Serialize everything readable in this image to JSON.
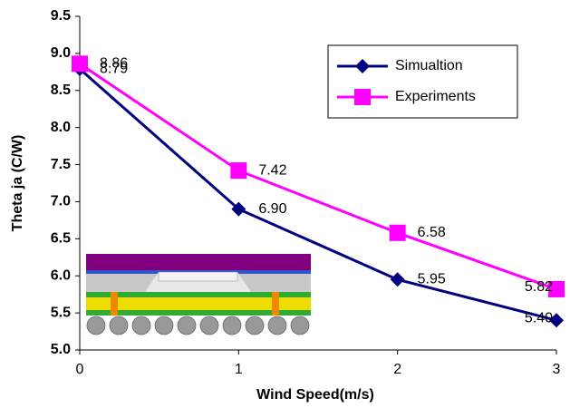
{
  "chart_data": {
    "type": "line",
    "x_label": "Wind Speed(m/s)",
    "y_label": "Theta ja (C/W)",
    "x": [
      0,
      1,
      2,
      3
    ],
    "series": [
      {
        "name": "Simualtion",
        "color": "#000080",
        "marker": "diamond",
        "values": [
          8.79,
          6.9,
          5.95,
          5.4
        ],
        "value_labels": [
          "8.79",
          "6.90",
          "5.95",
          "5.40"
        ]
      },
      {
        "name": "Experiments",
        "color": "#ff00ff",
        "marker": "square",
        "values": [
          8.86,
          7.42,
          6.58,
          5.82
        ],
        "value_labels": [
          "8.86",
          "7.42",
          "6.58",
          "5.82"
        ]
      }
    ],
    "xlim": [
      0,
      3
    ],
    "xticks": [
      0,
      1,
      2,
      3
    ],
    "ylim": [
      5.0,
      9.5
    ],
    "yticks": [
      {
        "value": 5.0,
        "label": "5.0"
      },
      5.5,
      {
        "value": 6.0,
        "label": "6.0"
      },
      6.5,
      {
        "value": 7.0,
        "label": "7.0"
      },
      7.5,
      {
        "value": 8.0,
        "label": "8.0"
      },
      8.5,
      {
        "value": 9.0,
        "label": "9.0"
      },
      9.5
    ],
    "grid": false,
    "legend": "upper right"
  }
}
